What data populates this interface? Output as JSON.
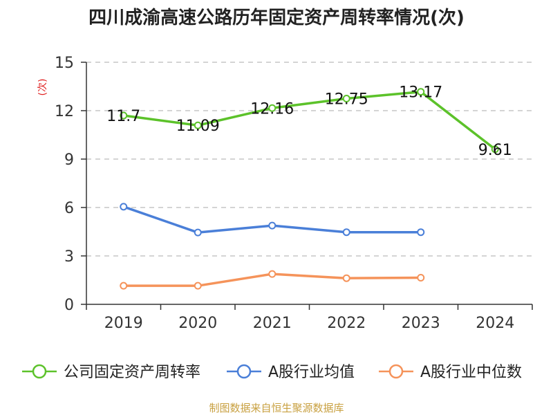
{
  "chart_data": {
    "type": "line",
    "title": "四川成渝高速公路历年固定资产周转率情况(次)",
    "ylabel": "(次)",
    "xlabel": "",
    "categories": [
      "2019",
      "2020",
      "2021",
      "2022",
      "2023",
      "2024"
    ],
    "ylim": [
      0,
      15
    ],
    "yticks": [
      0,
      3,
      6,
      9,
      12,
      15
    ],
    "grid": true,
    "legend_position": "bottom",
    "series": [
      {
        "name": "公司固定资产周转率",
        "values": [
          11.7,
          11.09,
          12.16,
          12.75,
          13.17,
          9.61
        ],
        "labels": [
          "11.7",
          "11.09",
          "12.16",
          "12.75",
          "13.17",
          "9.61"
        ],
        "color": "#5cc22a"
      },
      {
        "name": "A股行业均值",
        "values": [
          6.05,
          4.45,
          4.88,
          4.47,
          4.47,
          null
        ],
        "color": "#4a7fd8"
      },
      {
        "name": "A股行业中位数",
        "values": [
          1.15,
          1.15,
          1.88,
          1.62,
          1.65,
          null
        ],
        "color": "#f5935a"
      }
    ],
    "source": "制图数据来自恒生聚源数据库",
    "colors": {
      "title": "#222222",
      "ylabel": "#e02020",
      "axis": "#333333",
      "grid": "#bbbbbb",
      "source": "#c8a040"
    }
  }
}
